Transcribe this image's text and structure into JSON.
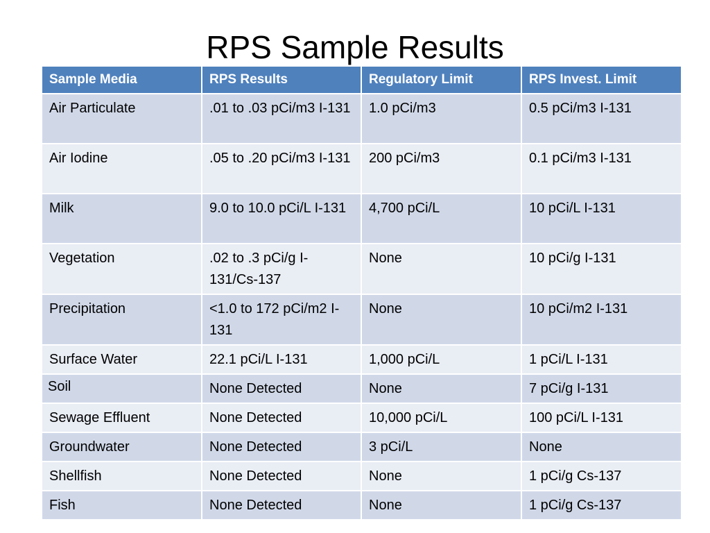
{
  "title": "RPS Sample Results",
  "table": {
    "headers": [
      "Sample Media",
      "RPS Results",
      "Regulatory Limit",
      "RPS  Invest. Limit"
    ],
    "rows": [
      {
        "media": "Air Particulate",
        "results": ".01 to .03 pCi/m3 I-131",
        "regulatory": "1.0 pCi/m3",
        "invest": "0.5 pCi/m3 I-131"
      },
      {
        "media": "Air Iodine",
        "results": ".05 to .20 pCi/m3 I-131",
        "regulatory": "200 pCi/m3",
        "invest": "0.1 pCi/m3 I-131"
      },
      {
        "media": "Milk",
        "results": "9.0 to 10.0 pCi/L I-131",
        "regulatory": "4,700 pCi/L",
        "invest": "10 pCi/L I-131"
      },
      {
        "media": "Vegetation",
        "results": ".02 to .3 pCi/g  I-131/Cs-137",
        "regulatory": "None",
        "invest": "10 pCi/g I-131"
      },
      {
        "media": "Precipitation",
        "results": "<1.0 to 172 pCi/m2 I-131",
        "regulatory": "None",
        "invest": "10 pCi/m2 I-131"
      },
      {
        "media": "Surface Water",
        "results": "22.1 pCi/L  I-131",
        "regulatory": "1,000 pCi/L",
        "invest": "1 pCi/L I-131"
      },
      {
        "media": "Soil",
        "results": "None Detected",
        "regulatory": "None",
        "invest": "7 pCi/g I-131"
      },
      {
        "media": "Sewage Effluent",
        "results": "None Detected",
        "regulatory": "10,000 pCi/L",
        "invest": "100 pCi/L I-131"
      },
      {
        "media": "Groundwater",
        "results": "None Detected",
        "regulatory": "3 pCi/L",
        "invest": "None"
      },
      {
        "media": "Shellfish",
        "results": "None Detected",
        "regulatory": "None",
        "invest": "1 pCi/g Cs-137"
      },
      {
        "media": "Fish",
        "results": "None Detected",
        "regulatory": "None",
        "invest": "1 pCi/g Cs-137"
      }
    ]
  },
  "colors": {
    "header_bg": "#4f81bd",
    "row_odd_bg": "#d0d8e8",
    "row_even_bg": "#e9edf4"
  }
}
